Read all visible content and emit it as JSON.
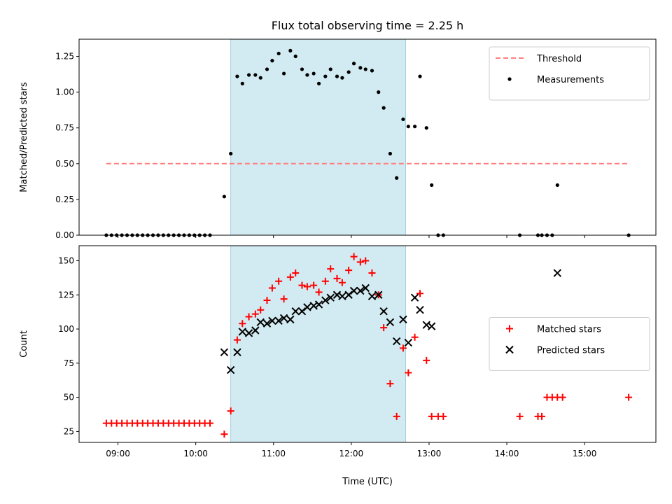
{
  "chart_data": {
    "title": "Flux total observing time = 2.25 h",
    "shaded_region": {
      "x_start": "10:27",
      "x_end": "12:42",
      "color": "#add8e6"
    },
    "xlabel": "Time (UTC)",
    "xticks": [
      "09:00",
      "10:00",
      "11:00",
      "12:00",
      "13:00",
      "14:00",
      "15:00"
    ],
    "xlim": [
      "08:30",
      "15:55"
    ],
    "panels": [
      {
        "type": "scatter",
        "ylabel": "Matched/Predicted stars",
        "ylim": [
          0,
          1.37
        ],
        "yticks": [
          "0.00",
          "0.25",
          "0.50",
          "0.75",
          "1.00",
          "1.25"
        ],
        "legend_position": "upper right",
        "threshold": {
          "name": "Threshold",
          "value": 0.5,
          "x_start": "08:51",
          "x_end": "15:35",
          "color": "#ff7f7f"
        },
        "series": [
          {
            "name": "Measurements",
            "color": "#000000",
            "marker": "dot",
            "points": [
              [
                "08:51",
                0
              ],
              [
                "08:55",
                0
              ],
              [
                "08:59",
                0
              ],
              [
                "09:03",
                0
              ],
              [
                "09:07",
                0
              ],
              [
                "09:11",
                0
              ],
              [
                "09:15",
                0
              ],
              [
                "09:19",
                0
              ],
              [
                "09:23",
                0
              ],
              [
                "09:27",
                0
              ],
              [
                "09:31",
                0
              ],
              [
                "09:35",
                0
              ],
              [
                "09:39",
                0
              ],
              [
                "09:43",
                0
              ],
              [
                "09:47",
                0
              ],
              [
                "09:51",
                0
              ],
              [
                "09:55",
                0
              ],
              [
                "09:59",
                0
              ],
              [
                "10:03",
                0
              ],
              [
                "10:07",
                0
              ],
              [
                "10:11",
                0
              ],
              [
                "10:22",
                0.27
              ],
              [
                "10:27",
                0.57
              ],
              [
                "10:32",
                1.11
              ],
              [
                "10:36",
                1.06
              ],
              [
                "10:41",
                1.12
              ],
              [
                "10:46",
                1.12
              ],
              [
                "10:50",
                1.1
              ],
              [
                "10:55",
                1.16
              ],
              [
                "10:59",
                1.22
              ],
              [
                "11:04",
                1.27
              ],
              [
                "11:08",
                1.13
              ],
              [
                "11:13",
                1.29
              ],
              [
                "11:17",
                1.25
              ],
              [
                "11:22",
                1.16
              ],
              [
                "11:26",
                1.12
              ],
              [
                "11:31",
                1.13
              ],
              [
                "11:35",
                1.06
              ],
              [
                "11:40",
                1.11
              ],
              [
                "11:44",
                1.16
              ],
              [
                "11:49",
                1.11
              ],
              [
                "11:53",
                1.1
              ],
              [
                "11:58",
                1.14
              ],
              [
                "12:02",
                1.2
              ],
              [
                "12:07",
                1.17
              ],
              [
                "12:11",
                1.16
              ],
              [
                "12:16",
                1.15
              ],
              [
                "12:21",
                1.0
              ],
              [
                "12:25",
                0.89
              ],
              [
                "12:30",
                0.57
              ],
              [
                "12:35",
                0.4
              ],
              [
                "12:40",
                0.81
              ],
              [
                "12:44",
                0.76
              ],
              [
                "12:49",
                0.76
              ],
              [
                "12:53",
                1.11
              ],
              [
                "12:58",
                0.75
              ],
              [
                "13:02",
                0.35
              ],
              [
                "13:07",
                0
              ],
              [
                "13:11",
                0
              ],
              [
                "14:10",
                0
              ],
              [
                "14:24",
                0
              ],
              [
                "14:27",
                0
              ],
              [
                "14:31",
                0
              ],
              [
                "14:35",
                0
              ],
              [
                "15:34",
                0
              ],
              [
                "14:39",
                0.35
              ]
            ]
          }
        ]
      },
      {
        "type": "scatter",
        "ylabel": "Count",
        "ylim": [
          17,
          161
        ],
        "yticks": [
          "25",
          "50",
          "75",
          "100",
          "125",
          "150"
        ],
        "legend_position": "center right",
        "series": [
          {
            "name": "Matched stars",
            "color": "#ff0000",
            "marker": "plus",
            "points": [
              [
                "08:51",
                31
              ],
              [
                "08:55",
                31
              ],
              [
                "08:59",
                31
              ],
              [
                "09:03",
                31
              ],
              [
                "09:07",
                31
              ],
              [
                "09:11",
                31
              ],
              [
                "09:15",
                31
              ],
              [
                "09:19",
                31
              ],
              [
                "09:23",
                31
              ],
              [
                "09:27",
                31
              ],
              [
                "09:31",
                31
              ],
              [
                "09:35",
                31
              ],
              [
                "09:39",
                31
              ],
              [
                "09:43",
                31
              ],
              [
                "09:47",
                31
              ],
              [
                "09:51",
                31
              ],
              [
                "09:55",
                31
              ],
              [
                "09:59",
                31
              ],
              [
                "10:03",
                31
              ],
              [
                "10:07",
                31
              ],
              [
                "10:11",
                31
              ],
              [
                "10:22",
                23
              ],
              [
                "10:27",
                40
              ],
              [
                "10:32",
                92
              ],
              [
                "10:36",
                104
              ],
              [
                "10:41",
                109
              ],
              [
                "10:46",
                111
              ],
              [
                "10:50",
                114
              ],
              [
                "10:55",
                121
              ],
              [
                "10:59",
                130
              ],
              [
                "11:04",
                135
              ],
              [
                "11:08",
                122
              ],
              [
                "11:13",
                138
              ],
              [
                "11:17",
                141
              ],
              [
                "11:22",
                132
              ],
              [
                "11:26",
                131
              ],
              [
                "11:31",
                132
              ],
              [
                "11:35",
                127
              ],
              [
                "11:40",
                135
              ],
              [
                "11:44",
                144
              ],
              [
                "11:49",
                137
              ],
              [
                "11:53",
                134
              ],
              [
                "11:58",
                143
              ],
              [
                "12:02",
                153
              ],
              [
                "12:07",
                149
              ],
              [
                "12:11",
                150
              ],
              [
                "12:16",
                141
              ],
              [
                "12:21",
                125
              ],
              [
                "12:25",
                101
              ],
              [
                "12:30",
                60
              ],
              [
                "12:35",
                36
              ],
              [
                "12:40",
                86
              ],
              [
                "12:44",
                68
              ],
              [
                "12:49",
                94
              ],
              [
                "12:53",
                126
              ],
              [
                "12:58",
                77
              ],
              [
                "13:02",
                36
              ],
              [
                "13:07",
                36
              ],
              [
                "13:11",
                36
              ],
              [
                "14:10",
                36
              ],
              [
                "14:24",
                36
              ],
              [
                "14:27",
                36
              ],
              [
                "14:31",
                50
              ],
              [
                "14:35",
                50
              ],
              [
                "14:39",
                50
              ],
              [
                "14:43",
                50
              ],
              [
                "15:34",
                50
              ]
            ]
          },
          {
            "name": "Predicted stars",
            "color": "#000000",
            "marker": "x",
            "points": [
              [
                "10:22",
                83
              ],
              [
                "10:27",
                70
              ],
              [
                "10:32",
                83
              ],
              [
                "10:36",
                98
              ],
              [
                "10:41",
                97
              ],
              [
                "10:46",
                99
              ],
              [
                "10:50",
                105
              ],
              [
                "10:55",
                104
              ],
              [
                "10:59",
                106
              ],
              [
                "11:04",
                106
              ],
              [
                "11:08",
                108
              ],
              [
                "11:13",
                107
              ],
              [
                "11:17",
                113
              ],
              [
                "11:22",
                113
              ],
              [
                "11:26",
                116
              ],
              [
                "11:31",
                117
              ],
              [
                "11:35",
                118
              ],
              [
                "11:40",
                121
              ],
              [
                "11:44",
                123
              ],
              [
                "11:49",
                125
              ],
              [
                "11:53",
                124
              ],
              [
                "11:58",
                125
              ],
              [
                "12:02",
                128
              ],
              [
                "12:07",
                128
              ],
              [
                "12:11",
                130
              ],
              [
                "12:16",
                124
              ],
              [
                "12:21",
                125
              ],
              [
                "12:25",
                113
              ],
              [
                "12:30",
                105
              ],
              [
                "12:35",
                91
              ],
              [
                "12:40",
                107
              ],
              [
                "12:44",
                90
              ],
              [
                "12:49",
                123
              ],
              [
                "12:53",
                114
              ],
              [
                "12:58",
                103
              ],
              [
                "13:02",
                102
              ],
              [
                "14:39",
                141
              ]
            ]
          }
        ]
      }
    ]
  }
}
